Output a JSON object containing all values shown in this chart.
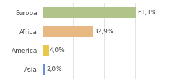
{
  "categories": [
    "Europa",
    "Africa",
    "America",
    "Asia"
  ],
  "values": [
    61.1,
    32.9,
    4.0,
    2.0
  ],
  "bar_colors": [
    "#aec eighteen",
    "#e8b882",
    "#e8c84a",
    "#6a8fd8"
  ],
  "bar_colors_fixed": [
    "#b0c48a",
    "#e8b882",
    "#e8c84a",
    "#6a8fd8"
  ],
  "labels": [
    "61,1%",
    "32,9%",
    "4,0%",
    "2,0%"
  ],
  "xlim": [
    0,
    75
  ],
  "background_color": "#ffffff",
  "bar_height": 0.6,
  "label_fontsize": 6.5,
  "cat_fontsize": 6.5,
  "figsize": [
    2.8,
    1.2
  ],
  "dpi": 100
}
